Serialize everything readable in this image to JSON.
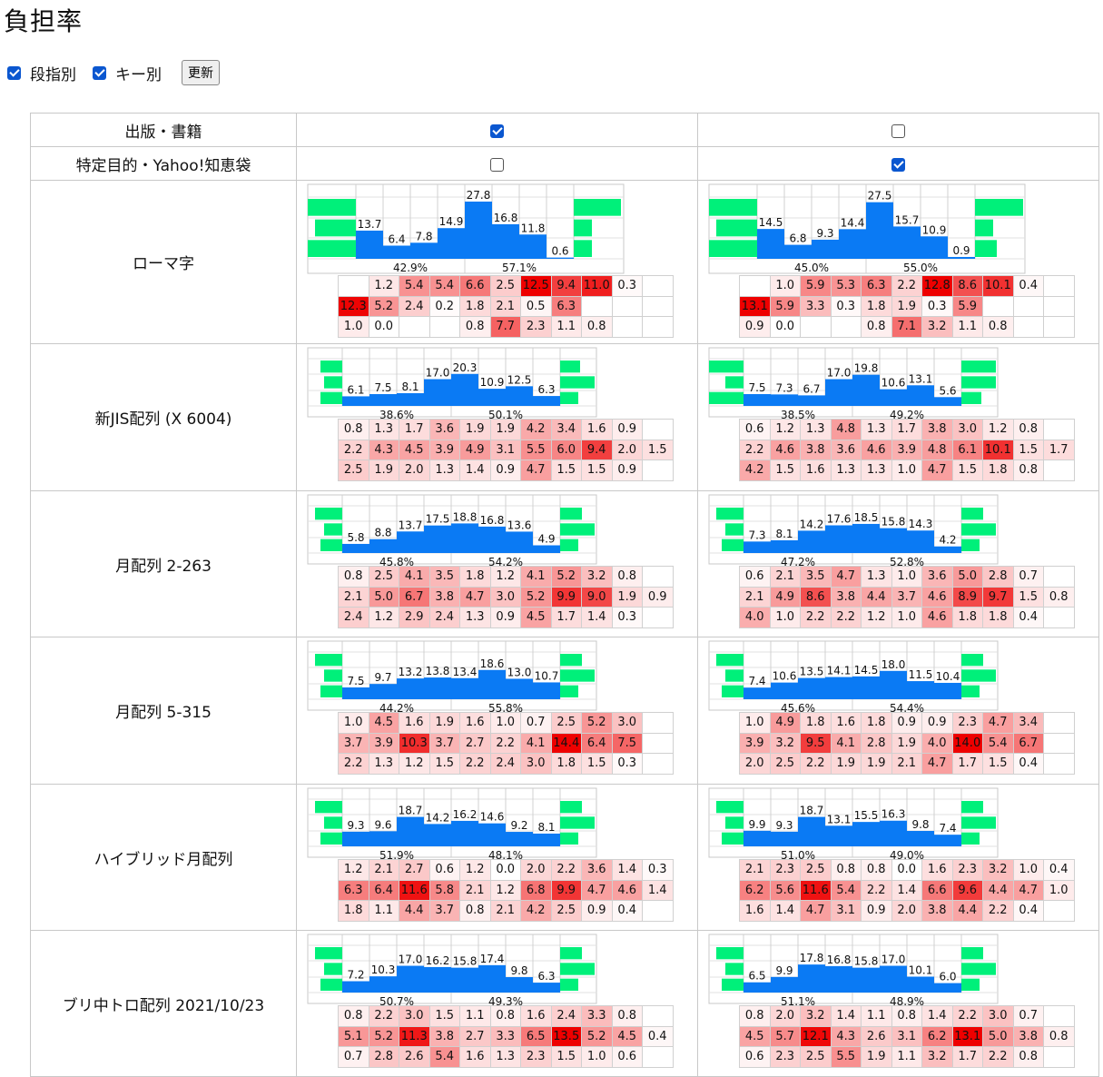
{
  "title": "負担率",
  "controls": {
    "dan_label": "段指別",
    "dan_checked": true,
    "key_label": "キー別",
    "key_checked": true,
    "refresh_label": "更新"
  },
  "corpus_rows": [
    {
      "label": "出版・書籍",
      "checked": [
        true,
        false
      ]
    },
    {
      "label": "特定目的・Yahoo!知恵袋",
      "checked": [
        false,
        true
      ]
    }
  ],
  "layouts": [
    {
      "name": "ローマ字",
      "columns": [
        {
          "fingers": [
            13.7,
            6.4,
            7.8,
            14.9,
            27.8,
            16.8,
            11.8,
            0.6
          ],
          "hands": [
            "42.9%",
            "57.1%"
          ],
          "rows": [
            [
              "",
              "1.2",
              "5.4",
              "5.4",
              "6.6",
              "2.5",
              "12.5",
              "9.4",
              "11.0",
              "0.3",
              ""
            ],
            [
              "12.3",
              "5.2",
              "2.4",
              "0.2",
              "1.8",
              "2.1",
              "0.5",
              "6.3",
              "",
              "",
              ""
            ],
            [
              "1.0",
              "0.0",
              "",
              "",
              "0.8",
              "7.7",
              "2.3",
              "1.1",
              "0.8",
              "",
              ""
            ]
          ]
        },
        {
          "fingers": [
            14.5,
            6.8,
            9.3,
            14.4,
            27.5,
            15.7,
            10.9,
            0.9
          ],
          "hands": [
            "45.0%",
            "55.0%"
          ],
          "rows": [
            [
              "",
              "1.0",
              "5.9",
              "5.3",
              "6.3",
              "2.2",
              "12.8",
              "8.6",
              "10.1",
              "0.4",
              ""
            ],
            [
              "13.1",
              "5.9",
              "3.3",
              "0.3",
              "1.8",
              "1.9",
              "0.3",
              "5.9",
              "",
              "",
              ""
            ],
            [
              "0.9",
              "0.0",
              "",
              "",
              "0.8",
              "7.1",
              "3.2",
              "1.1",
              "0.8",
              "",
              ""
            ]
          ]
        }
      ]
    },
    {
      "name": "新JIS配列 (X 6004)",
      "columns": [
        {
          "fingers": [
            6.1,
            7.5,
            8.1,
            17.0,
            20.3,
            10.9,
            12.5,
            6.3
          ],
          "hands": [
            "38.6%",
            "50.1%"
          ],
          "rows": [
            [
              "0.8",
              "1.3",
              "1.7",
              "3.6",
              "1.9",
              "1.9",
              "4.2",
              "3.4",
              "1.6",
              "0.9",
              ""
            ],
            [
              "2.2",
              "4.3",
              "4.5",
              "3.9",
              "4.9",
              "3.1",
              "5.5",
              "6.0",
              "9.4",
              "2.0",
              "1.5"
            ],
            [
              "2.5",
              "1.9",
              "2.0",
              "1.3",
              "1.4",
              "0.9",
              "4.7",
              "1.5",
              "1.5",
              "0.9",
              ""
            ]
          ]
        },
        {
          "fingers": [
            7.5,
            7.3,
            6.7,
            17.0,
            19.8,
            10.6,
            13.1,
            5.6
          ],
          "hands": [
            "38.5%",
            "49.2%"
          ],
          "rows": [
            [
              "0.6",
              "1.2",
              "1.3",
              "4.8",
              "1.3",
              "1.7",
              "3.8",
              "3.0",
              "1.2",
              "0.8",
              ""
            ],
            [
              "2.2",
              "4.6",
              "3.8",
              "3.6",
              "4.6",
              "3.9",
              "4.8",
              "6.1",
              "10.1",
              "1.5",
              "1.7"
            ],
            [
              "4.2",
              "1.5",
              "1.6",
              "1.3",
              "1.3",
              "1.0",
              "4.7",
              "1.5",
              "1.8",
              "0.8",
              ""
            ]
          ]
        }
      ]
    },
    {
      "name": "月配列 2-263",
      "columns": [
        {
          "fingers": [
            5.8,
            8.8,
            13.7,
            17.5,
            18.8,
            16.8,
            13.6,
            4.9
          ],
          "hands": [
            "45.8%",
            "54.2%"
          ],
          "rows": [
            [
              "0.8",
              "2.5",
              "4.1",
              "3.5",
              "1.8",
              "1.2",
              "4.1",
              "5.2",
              "3.2",
              "0.8",
              ""
            ],
            [
              "2.1",
              "5.0",
              "6.7",
              "3.8",
              "4.7",
              "3.0",
              "5.2",
              "9.9",
              "9.0",
              "1.9",
              "0.9"
            ],
            [
              "2.4",
              "1.2",
              "2.9",
              "2.4",
              "1.3",
              "0.9",
              "4.5",
              "1.7",
              "1.4",
              "0.3",
              ""
            ]
          ]
        },
        {
          "fingers": [
            7.3,
            8.1,
            14.2,
            17.6,
            18.5,
            15.8,
            14.3,
            4.2
          ],
          "hands": [
            "47.2%",
            "52.8%"
          ],
          "rows": [
            [
              "0.6",
              "2.1",
              "3.5",
              "4.7",
              "1.3",
              "1.0",
              "3.6",
              "5.0",
              "2.8",
              "0.7",
              ""
            ],
            [
              "2.1",
              "4.9",
              "8.6",
              "3.8",
              "4.4",
              "3.7",
              "4.6",
              "8.9",
              "9.7",
              "1.5",
              "0.8"
            ],
            [
              "4.0",
              "1.0",
              "2.2",
              "2.2",
              "1.2",
              "1.0",
              "4.6",
              "1.8",
              "1.8",
              "0.4",
              ""
            ]
          ]
        }
      ]
    },
    {
      "name": "月配列 5-315",
      "columns": [
        {
          "fingers": [
            7.5,
            9.7,
            13.2,
            13.8,
            13.4,
            18.6,
            13.0,
            10.7
          ],
          "hands": [
            "44.2%",
            "55.8%"
          ],
          "rows": [
            [
              "1.0",
              "4.5",
              "1.6",
              "1.9",
              "1.6",
              "1.0",
              "0.7",
              "2.5",
              "5.2",
              "3.0",
              ""
            ],
            [
              "3.7",
              "3.9",
              "10.3",
              "3.7",
              "2.7",
              "2.2",
              "4.1",
              "14.4",
              "6.4",
              "7.5",
              ""
            ],
            [
              "2.2",
              "1.3",
              "1.2",
              "1.5",
              "2.2",
              "2.4",
              "3.0",
              "1.8",
              "1.5",
              "0.3",
              ""
            ]
          ]
        },
        {
          "fingers": [
            7.4,
            10.6,
            13.5,
            14.1,
            14.5,
            18.0,
            11.5,
            10.4
          ],
          "hands": [
            "45.6%",
            "54.4%"
          ],
          "rows": [
            [
              "1.0",
              "4.9",
              "1.8",
              "1.6",
              "1.8",
              "0.9",
              "0.9",
              "2.3",
              "4.7",
              "3.4",
              ""
            ],
            [
              "3.9",
              "3.2",
              "9.5",
              "4.1",
              "2.8",
              "1.9",
              "4.0",
              "14.0",
              "5.4",
              "6.7",
              ""
            ],
            [
              "2.0",
              "2.5",
              "2.2",
              "1.9",
              "1.9",
              "2.1",
              "4.7",
              "1.7",
              "1.5",
              "0.4",
              ""
            ]
          ]
        }
      ]
    },
    {
      "name": "ハイブリッド月配列",
      "columns": [
        {
          "fingers": [
            9.3,
            9.6,
            18.7,
            14.2,
            16.2,
            14.6,
            9.2,
            8.1
          ],
          "hands": [
            "51.9%",
            "48.1%"
          ],
          "rows": [
            [
              "1.2",
              "2.1",
              "2.7",
              "0.6",
              "1.2",
              "0.0",
              "2.0",
              "2.2",
              "3.6",
              "1.4",
              "0.3"
            ],
            [
              "6.3",
              "6.4",
              "11.6",
              "5.8",
              "2.1",
              "1.2",
              "6.8",
              "9.9",
              "4.7",
              "4.6",
              "1.4"
            ],
            [
              "1.8",
              "1.1",
              "4.4",
              "3.7",
              "0.8",
              "2.1",
              "4.2",
              "2.5",
              "0.9",
              "0.4",
              ""
            ]
          ]
        },
        {
          "fingers": [
            9.9,
            9.3,
            18.7,
            13.1,
            15.5,
            16.3,
            9.8,
            7.4
          ],
          "hands": [
            "51.0%",
            "49.0%"
          ],
          "rows": [
            [
              "2.1",
              "2.3",
              "2.5",
              "0.8",
              "0.8",
              "0.0",
              "1.6",
              "2.3",
              "3.2",
              "1.0",
              "0.4"
            ],
            [
              "6.2",
              "5.6",
              "11.6",
              "5.4",
              "2.2",
              "1.4",
              "6.6",
              "9.6",
              "4.4",
              "4.7",
              "1.0"
            ],
            [
              "1.6",
              "1.4",
              "4.7",
              "3.1",
              "0.9",
              "2.0",
              "3.8",
              "4.4",
              "2.2",
              "0.4",
              ""
            ]
          ]
        }
      ]
    },
    {
      "name": "ブリ中トロ配列 2021/10/23",
      "columns": [
        {
          "fingers": [
            7.2,
            10.3,
            17.0,
            16.2,
            15.8,
            17.4,
            9.8,
            6.3
          ],
          "hands": [
            "50.7%",
            "49.3%"
          ],
          "rows": [
            [
              "0.8",
              "2.2",
              "3.0",
              "1.5",
              "1.1",
              "0.8",
              "1.6",
              "2.4",
              "3.3",
              "0.8",
              ""
            ],
            [
              "5.1",
              "5.2",
              "11.3",
              "3.8",
              "2.7",
              "3.3",
              "6.5",
              "13.5",
              "5.2",
              "4.5",
              "0.4"
            ],
            [
              "0.7",
              "2.8",
              "2.6",
              "5.4",
              "1.6",
              "1.3",
              "2.3",
              "1.5",
              "1.0",
              "0.6",
              ""
            ]
          ]
        },
        {
          "fingers": [
            6.5,
            9.9,
            17.8,
            16.8,
            15.8,
            17.0,
            10.1,
            6.0
          ],
          "hands": [
            "51.1%",
            "48.9%"
          ],
          "rows": [
            [
              "0.8",
              "2.0",
              "3.2",
              "1.4",
              "1.1",
              "0.8",
              "1.4",
              "2.2",
              "3.0",
              "0.7",
              ""
            ],
            [
              "4.5",
              "5.7",
              "12.1",
              "4.3",
              "2.6",
              "3.1",
              "6.2",
              "13.1",
              "5.0",
              "3.8",
              "0.8"
            ],
            [
              "0.6",
              "2.3",
              "2.5",
              "5.5",
              "1.9",
              "1.1",
              "3.2",
              "1.7",
              "2.2",
              "0.8",
              ""
            ]
          ]
        }
      ]
    }
  ],
  "colors": {
    "bar": "#0a7af4",
    "side": "#00f07a",
    "heat_max": "#ee0000"
  }
}
